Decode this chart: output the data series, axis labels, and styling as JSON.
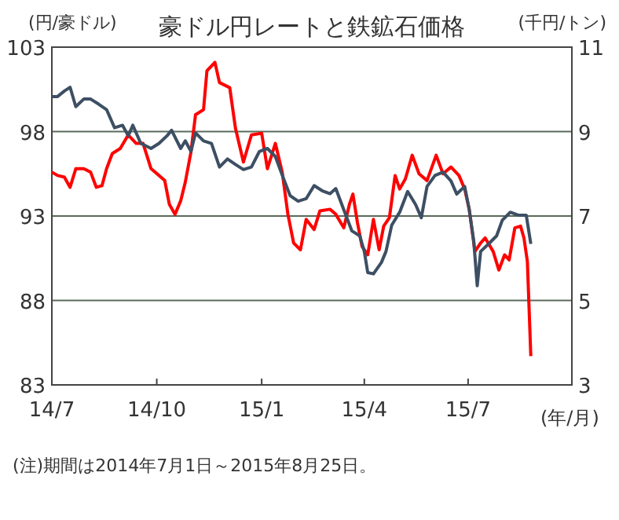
{
  "chart_data": {
    "type": "line",
    "title": "豪ドル円レートと鉄鉱石価格",
    "ylabel": "(円/豪ドル)",
    "y2label": "(千円/トン)",
    "xlabel": "(年/月)",
    "annotations": [
      "(注)期間は2014年7月1日～2015年8月25日。"
    ],
    "xlim": [
      "2014-07-01",
      "2015-09-30"
    ],
    "xticks": [
      {
        "value": "2014-07-01",
        "label": "14/7"
      },
      {
        "value": "2014-10-01",
        "label": "14/10"
      },
      {
        "value": "2015-01-01",
        "label": "15/1"
      },
      {
        "value": "2015-04-01",
        "label": "15/4"
      },
      {
        "value": "2015-07-01",
        "label": "15/7"
      }
    ],
    "ylim": [
      83,
      103
    ],
    "yticks": [
      83,
      88,
      93,
      98,
      103
    ],
    "y2lim": [
      3,
      11
    ],
    "y2ticks": [
      3,
      5,
      7,
      9,
      11
    ],
    "grid": "y",
    "line_style": "solid",
    "series": [
      {
        "color": "#ff0000",
        "axis": "y",
        "x": [
          "2014-07-01",
          "2014-07-06",
          "2014-07-12",
          "2014-07-17",
          "2014-07-22",
          "2014-07-29",
          "2014-08-04",
          "2014-08-09",
          "2014-08-14",
          "2014-08-18",
          "2014-08-23",
          "2014-08-30",
          "2014-09-06",
          "2014-09-13",
          "2014-09-19",
          "2014-09-26",
          "2014-10-03",
          "2014-10-08",
          "2014-10-12",
          "2014-10-17",
          "2014-10-22",
          "2014-10-26",
          "2014-10-31",
          "2014-11-04",
          "2014-11-11",
          "2014-11-14",
          "2014-11-21",
          "2014-11-25",
          "2014-12-04",
          "2014-12-09",
          "2014-12-16",
          "2014-12-23",
          "2015-01-01",
          "2015-01-06",
          "2015-01-13",
          "2015-01-19",
          "2015-01-24",
          "2015-01-29",
          "2015-02-04",
          "2015-02-09",
          "2015-02-16",
          "2015-02-21",
          "2015-03-02",
          "2015-03-07",
          "2015-03-14",
          "2015-03-19",
          "2015-03-22",
          "2015-03-26",
          "2015-03-30",
          "2015-04-04",
          "2015-04-09",
          "2015-04-14",
          "2015-04-18",
          "2015-04-23",
          "2015-04-28",
          "2015-05-02",
          "2015-05-07",
          "2015-05-13",
          "2015-05-19",
          "2015-05-26",
          "2015-06-03",
          "2015-06-09",
          "2015-06-16",
          "2015-06-23",
          "2015-06-28",
          "2015-07-02",
          "2015-07-07",
          "2015-07-12",
          "2015-07-16",
          "2015-07-23",
          "2015-07-28",
          "2015-08-02",
          "2015-08-06",
          "2015-08-11",
          "2015-08-16",
          "2015-08-19",
          "2015-08-22",
          "2015-08-25"
        ],
        "values": [
          95.6,
          95.4,
          95.3,
          94.7,
          95.8,
          95.8,
          95.6,
          94.7,
          94.8,
          95.8,
          96.7,
          97.0,
          97.8,
          97.3,
          97.3,
          95.8,
          95.4,
          95.1,
          93.7,
          93.1,
          93.9,
          95.0,
          96.8,
          99.0,
          99.3,
          101.6,
          102.1,
          100.9,
          100.6,
          98.2,
          96.2,
          97.8,
          97.9,
          95.8,
          97.3,
          95.6,
          93.1,
          91.4,
          91.0,
          92.8,
          92.2,
          93.3,
          93.4,
          93.1,
          92.3,
          93.7,
          94.3,
          92.6,
          91.2,
          90.7,
          92.8,
          91.0,
          92.4,
          92.9,
          95.4,
          94.6,
          95.2,
          96.6,
          95.5,
          95.1,
          96.6,
          95.5,
          95.9,
          95.4,
          94.6,
          93.4,
          90.9,
          91.4,
          91.7,
          90.9,
          89.8,
          90.7,
          90.4,
          92.3,
          92.4,
          91.7,
          90.3,
          84.7
        ]
      },
      {
        "color": "#3d4f63",
        "axis": "y2",
        "x": [
          "2014-07-01",
          "2014-07-06",
          "2014-07-12",
          "2014-07-17",
          "2014-07-22",
          "2014-07-29",
          "2014-08-04",
          "2014-08-11",
          "2014-08-18",
          "2014-08-25",
          "2014-09-01",
          "2014-09-06",
          "2014-09-10",
          "2014-09-17",
          "2014-09-26",
          "2014-10-03",
          "2014-10-10",
          "2014-10-14",
          "2014-10-22",
          "2014-10-26",
          "2014-10-31",
          "2014-11-04",
          "2014-11-11",
          "2014-11-18",
          "2014-11-25",
          "2014-12-02",
          "2014-12-09",
          "2014-12-16",
          "2014-12-23",
          "2014-12-30",
          "2015-01-06",
          "2015-01-13",
          "2015-01-19",
          "2015-01-26",
          "2015-02-02",
          "2015-02-09",
          "2015-02-16",
          "2015-02-23",
          "2015-03-02",
          "2015-03-07",
          "2015-03-14",
          "2015-03-21",
          "2015-03-28",
          "2015-04-01",
          "2015-04-04",
          "2015-04-09",
          "2015-04-16",
          "2015-04-20",
          "2015-04-25",
          "2015-05-02",
          "2015-05-09",
          "2015-05-16",
          "2015-05-21",
          "2015-05-26",
          "2015-06-02",
          "2015-06-09",
          "2015-06-16",
          "2015-06-21",
          "2015-06-28",
          "2015-07-02",
          "2015-07-06",
          "2015-07-09",
          "2015-07-12",
          "2015-07-19",
          "2015-07-26",
          "2015-07-31",
          "2015-08-07",
          "2015-08-14",
          "2015-08-21",
          "2015-08-25"
        ],
        "values": [
          9.83,
          9.83,
          9.96,
          10.05,
          9.59,
          9.77,
          9.77,
          9.65,
          9.52,
          9.09,
          9.15,
          8.9,
          9.15,
          8.72,
          8.6,
          8.72,
          8.9,
          9.03,
          8.6,
          8.78,
          8.53,
          8.97,
          8.78,
          8.72,
          8.16,
          8.35,
          8.22,
          8.1,
          8.16,
          8.53,
          8.6,
          8.41,
          7.97,
          7.48,
          7.35,
          7.41,
          7.72,
          7.6,
          7.53,
          7.65,
          7.15,
          6.65,
          6.53,
          6.16,
          5.66,
          5.63,
          5.9,
          6.16,
          6.78,
          7.09,
          7.58,
          7.27,
          6.96,
          7.7,
          7.96,
          8.04,
          7.83,
          7.52,
          7.7,
          7.15,
          6.4,
          5.35,
          6.16,
          6.34,
          6.53,
          6.9,
          7.09,
          7.02,
          7.02,
          6.34
        ]
      }
    ]
  }
}
